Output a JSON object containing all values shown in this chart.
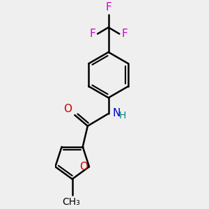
{
  "bg_color": "#efefef",
  "bond_color": "#000000",
  "bond_width": 1.8,
  "O_color": "#cc0000",
  "N_color": "#0000cc",
  "F_color": "#cc00cc",
  "font_size": 11,
  "figsize": [
    3.0,
    3.0
  ],
  "dpi": 100,
  "xlim": [
    -0.5,
    1.5
  ],
  "ylim": [
    -0.3,
    3.5
  ]
}
